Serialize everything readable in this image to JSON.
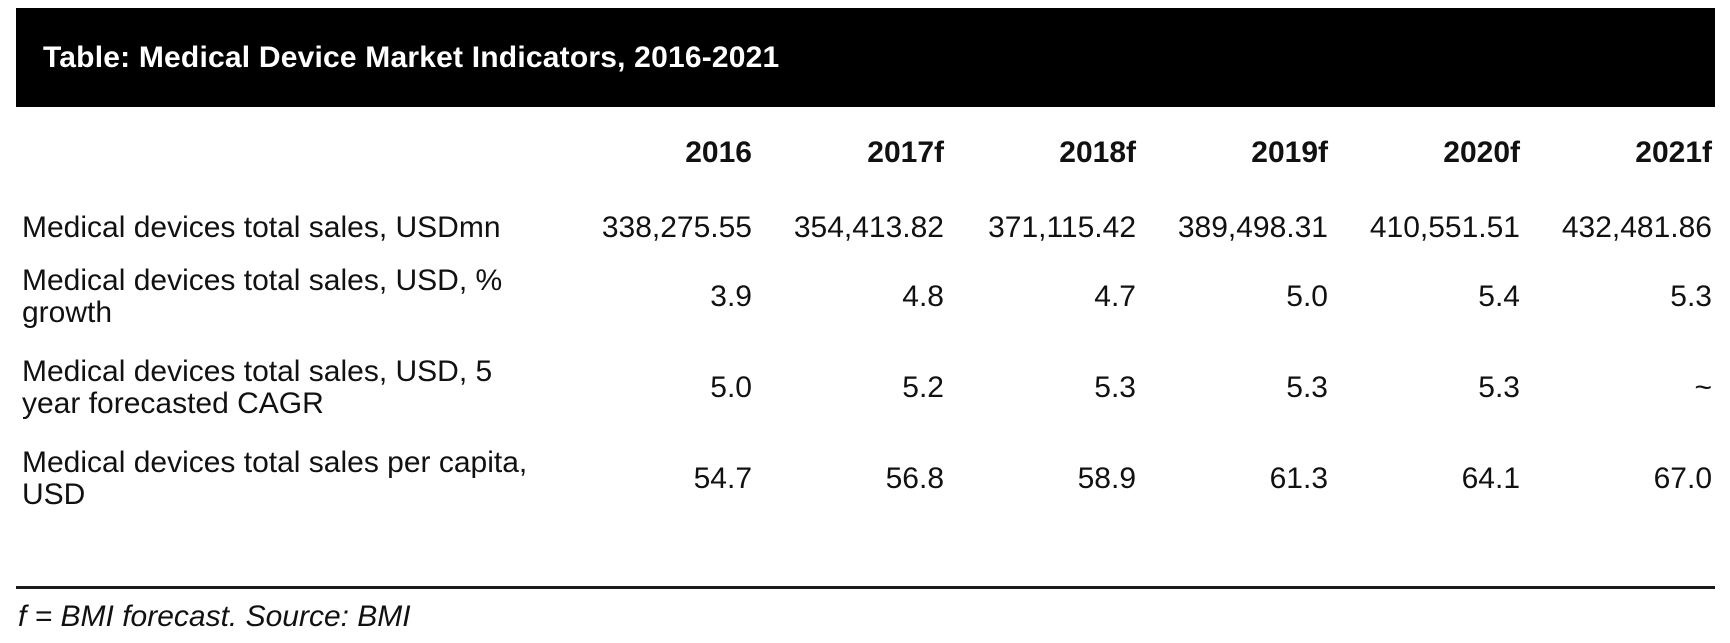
{
  "colors": {
    "page_bg": "#ffffff",
    "title_bar_bg": "#000000",
    "title_bar_text": "#ffffff",
    "body_text": "#111111",
    "rule": "#1a1a1a"
  },
  "chart_data": {
    "type": "table",
    "title": "Table: Medical Device Market Indicators, 2016-2021",
    "columns": [
      "2016",
      "2017f",
      "2018f",
      "2019f",
      "2020f",
      "2021f"
    ],
    "rows": [
      {
        "label": "Medical devices total sales, USDmn",
        "values": [
          "338,275.55",
          "354,413.82",
          "371,115.42",
          "389,498.31",
          "410,551.51",
          "432,481.86"
        ]
      },
      {
        "label": "Medical devices total sales, USD, % growth",
        "values": [
          "3.9",
          "4.8",
          "4.7",
          "5.0",
          "5.4",
          "5.3"
        ]
      },
      {
        "label": "Medical devices total sales, USD, 5 year forecasted CAGR",
        "values": [
          "5.0",
          "5.2",
          "5.3",
          "5.3",
          "5.3",
          "~"
        ]
      },
      {
        "label": "Medical devices total sales per capita, USD",
        "values": [
          "54.7",
          "56.8",
          "58.9",
          "61.3",
          "64.1",
          "67.0"
        ]
      }
    ],
    "footnote": "f = BMI forecast. Source: BMI"
  }
}
